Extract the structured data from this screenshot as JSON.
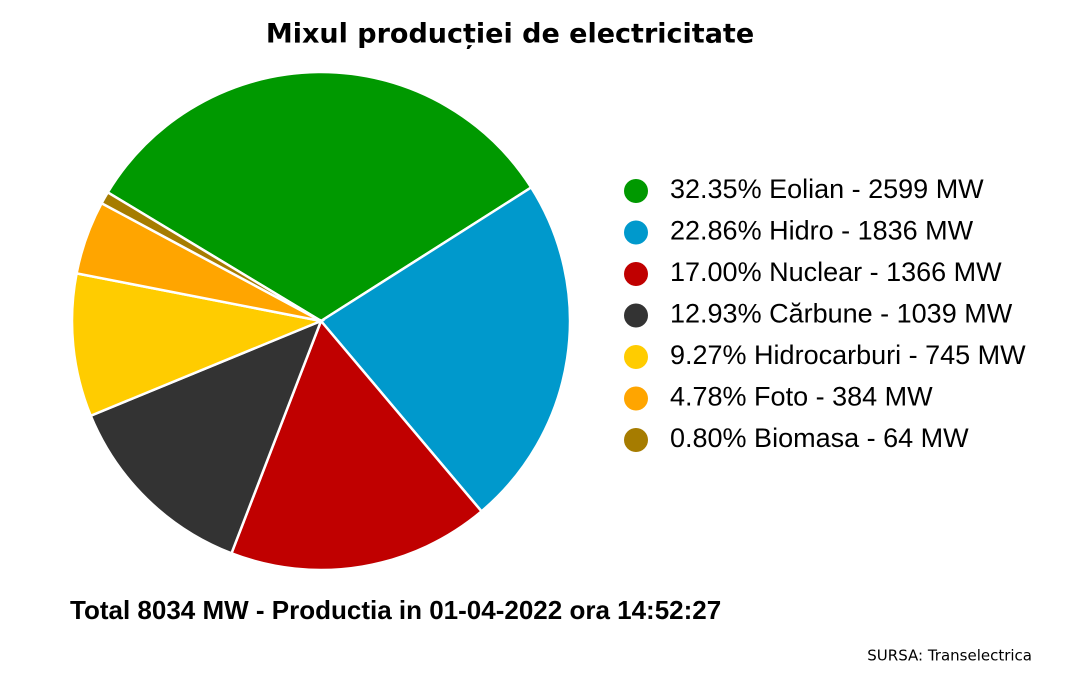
{
  "chart_data": {
    "type": "pie",
    "title": "Mixul producției de electricitate",
    "categories": [
      "32.35% Eolian - 2599 MW",
      "22.86% Hidro - 1836 MW",
      "17.00% Nuclear - 1366 MW",
      "12.93% Cărbune - 1039 MW",
      "9.27% Hidrocarburi - 745 MW",
      "4.78% Foto - 384 MW",
      "0.80% Biomasa - 64 MW"
    ],
    "values": [
      2599,
      1836,
      1366,
      1039,
      745,
      384,
      64
    ],
    "colors": [
      "#009900",
      "#0099cc",
      "#c00000",
      "#333333",
      "#ffcc00",
      "#ffa500",
      "#a67c00"
    ],
    "legend": "right",
    "annotation": "Total 8034 MW - Productia in 01-04-2022 ora 14:52:27",
    "source": "SURSA: Transelectrica"
  }
}
